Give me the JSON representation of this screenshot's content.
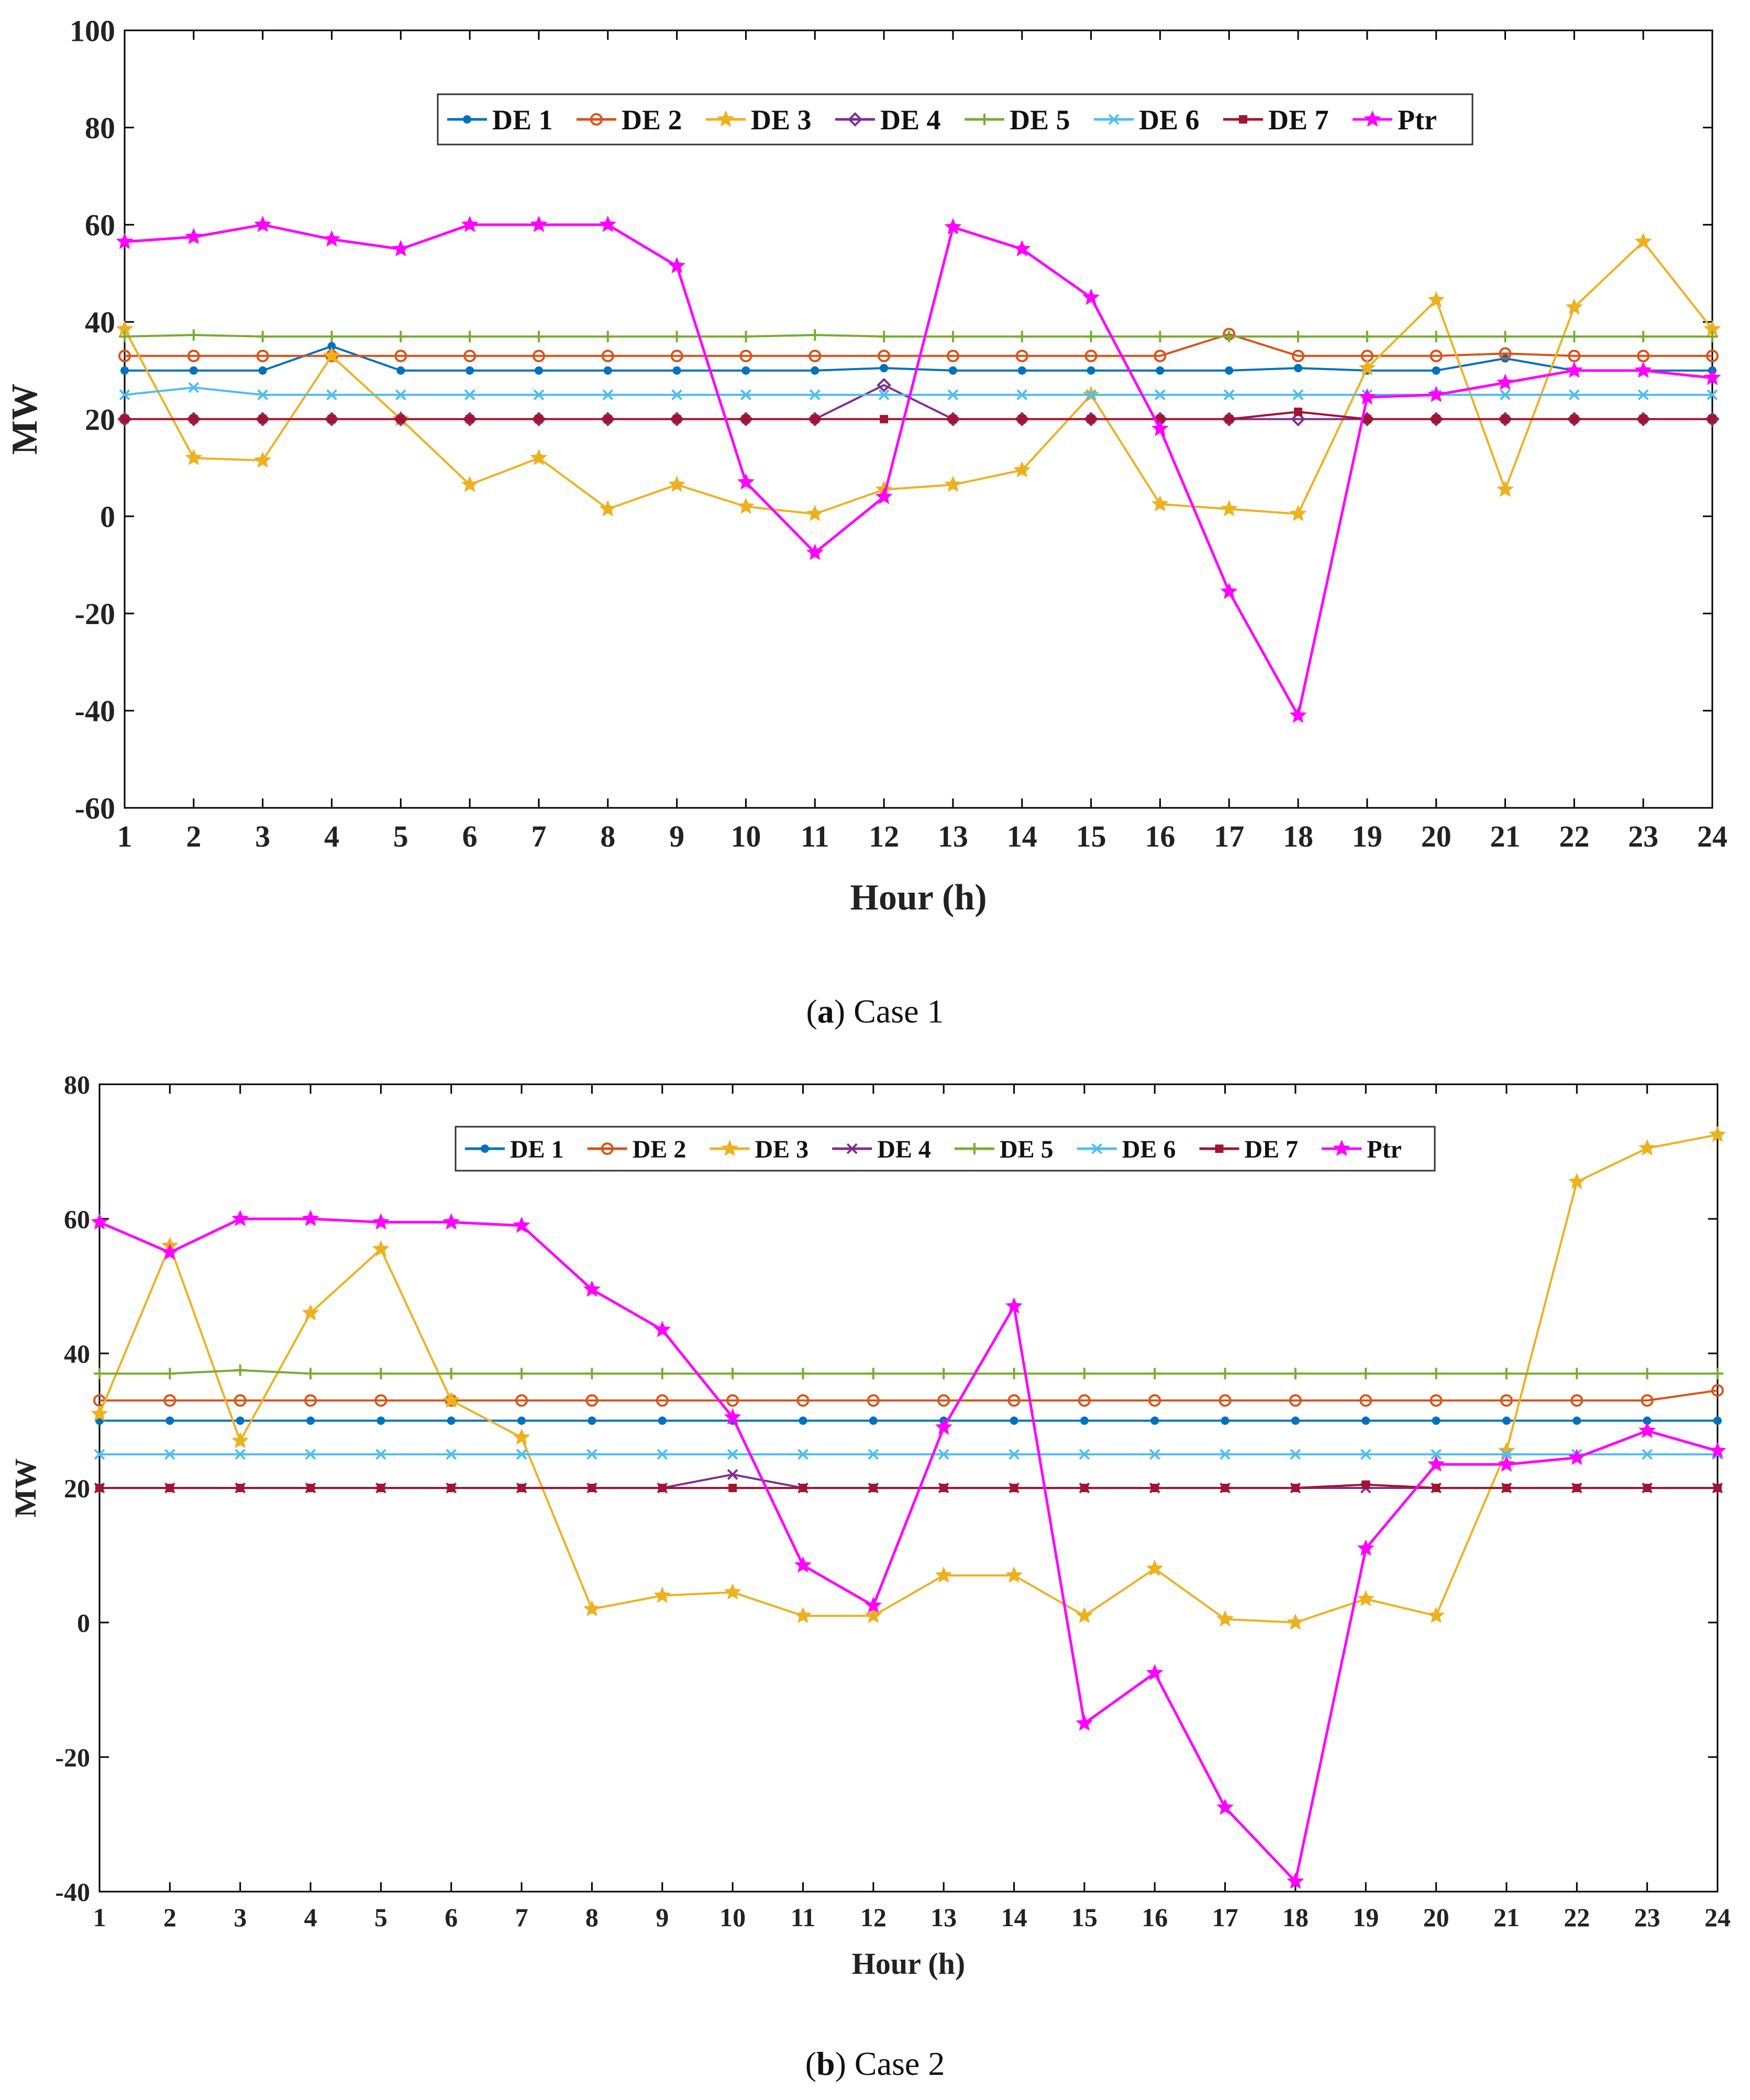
{
  "figure": {
    "captions": [
      {
        "letter": "a",
        "text": ") Case 1",
        "open": "("
      },
      {
        "letter": "b",
        "text": ") Case 2",
        "open": "("
      }
    ]
  },
  "colors": {
    "DE 1": "#0072BD",
    "DE 2": "#D95319",
    "DE 3": "#EDB120",
    "DE 4": "#7E2F8E",
    "DE 5": "#77AC30",
    "DE 6": "#4DBEEE",
    "DE 7": "#A2142F",
    "Ptr": "#FF00FF"
  },
  "chart_data": [
    {
      "type": "line",
      "title": "",
      "xlabel": "Hour (h)",
      "ylabel": "MW",
      "x": [
        1,
        2,
        3,
        4,
        5,
        6,
        7,
        8,
        9,
        10,
        11,
        12,
        13,
        14,
        15,
        16,
        17,
        18,
        19,
        20,
        21,
        22,
        23,
        24
      ],
      "xlim": [
        1,
        24
      ],
      "ylim": [
        -60,
        100
      ],
      "yticks": [
        -60,
        -40,
        -20,
        0,
        20,
        40,
        60,
        80,
        100
      ],
      "legend": "top-center",
      "series": [
        {
          "name": "DE 1",
          "marker": "dot",
          "values": [
            30,
            30,
            30,
            35,
            30,
            30,
            30,
            30,
            30,
            30,
            30,
            30.5,
            30,
            30,
            30,
            30,
            30,
            30.5,
            30,
            30,
            32.5,
            30,
            30,
            30
          ]
        },
        {
          "name": "DE 2",
          "marker": "circle",
          "values": [
            33,
            33,
            33,
            33,
            33,
            33,
            33,
            33,
            33,
            33,
            33,
            33,
            33,
            33,
            33,
            33,
            37.5,
            33,
            33,
            33,
            33.5,
            33,
            33,
            33
          ]
        },
        {
          "name": "DE 3",
          "marker": "star",
          "values": [
            38.5,
            12,
            11.5,
            33,
            20,
            6.5,
            12,
            1.5,
            6.5,
            2,
            0.5,
            5.5,
            6.5,
            9.5,
            25,
            2.5,
            1.5,
            0.5,
            30.5,
            44.5,
            5.5,
            43,
            56.5,
            38.5
          ]
        },
        {
          "name": "DE 4",
          "marker": "diamond",
          "values": [
            20,
            20,
            20,
            20,
            20,
            20,
            20,
            20,
            20,
            20,
            20,
            27,
            20,
            20,
            20,
            20,
            20,
            20,
            20,
            20,
            20,
            20,
            20,
            20
          ]
        },
        {
          "name": "DE 5",
          "marker": "plus",
          "values": [
            37,
            37.3,
            37,
            37,
            37,
            37,
            37,
            37,
            37,
            37,
            37.3,
            37,
            37,
            37,
            37,
            37,
            37,
            37,
            37,
            37,
            37,
            37,
            37,
            37
          ]
        },
        {
          "name": "DE 6",
          "marker": "x",
          "values": [
            25,
            26.5,
            25,
            25,
            25,
            25,
            25,
            25,
            25,
            25,
            25,
            25,
            25,
            25,
            25,
            25,
            25,
            25,
            25,
            25,
            25,
            25,
            25,
            25
          ]
        },
        {
          "name": "DE 7",
          "marker": "square",
          "values": [
            20,
            20,
            20,
            20,
            20,
            20,
            20,
            20,
            20,
            20,
            20,
            20,
            20,
            20,
            20,
            20,
            20,
            21.5,
            20,
            20,
            20,
            20,
            20,
            20
          ]
        },
        {
          "name": "Ptr",
          "marker": "star",
          "values": [
            56.5,
            57.5,
            60,
            57,
            55,
            60,
            60,
            60,
            51.5,
            7,
            -7.5,
            4,
            59.5,
            55,
            45,
            18,
            -15.5,
            -41,
            24.5,
            25,
            27.5,
            30,
            30,
            28.5
          ]
        }
      ]
    },
    {
      "type": "line",
      "title": "",
      "xlabel": "Hour (h)",
      "ylabel": "MW",
      "x": [
        1,
        2,
        3,
        4,
        5,
        6,
        7,
        8,
        9,
        10,
        11,
        12,
        13,
        14,
        15,
        16,
        17,
        18,
        19,
        20,
        21,
        22,
        23,
        24
      ],
      "xlim": [
        1,
        24
      ],
      "ylim": [
        -40,
        80
      ],
      "yticks": [
        -40,
        -20,
        0,
        20,
        40,
        60,
        80
      ],
      "legend": "top-center",
      "series": [
        {
          "name": "DE 1",
          "marker": "dot",
          "values": [
            30,
            30,
            30,
            30,
            30,
            30,
            30,
            30,
            30,
            30,
            30,
            30,
            30,
            30,
            30,
            30,
            30,
            30,
            30,
            30,
            30,
            30,
            30,
            30
          ]
        },
        {
          "name": "DE 2",
          "marker": "circle",
          "values": [
            33,
            33,
            33,
            33,
            33,
            33,
            33,
            33,
            33,
            33,
            33,
            33,
            33,
            33,
            33,
            33,
            33,
            33,
            33,
            33,
            33,
            33,
            33,
            34.5
          ]
        },
        {
          "name": "DE 3",
          "marker": "star",
          "values": [
            31,
            56,
            27,
            46,
            55.5,
            33,
            27.5,
            2,
            4,
            4.5,
            1,
            1,
            7,
            7,
            1,
            8,
            0.5,
            0,
            3.5,
            1,
            25.5,
            65.5,
            70.5,
            72.5
          ]
        },
        {
          "name": "DE 4",
          "marker": "x",
          "values": [
            20,
            20,
            20,
            20,
            20,
            20,
            20,
            20,
            20,
            22,
            20,
            20,
            20,
            20,
            20,
            20,
            20,
            20,
            20,
            20,
            20,
            20,
            20,
            20
          ]
        },
        {
          "name": "DE 5",
          "marker": "plus",
          "values": [
            37,
            37,
            37.5,
            37,
            37,
            37,
            37,
            37,
            37,
            37,
            37,
            37,
            37,
            37,
            37,
            37,
            37,
            37,
            37,
            37,
            37,
            37,
            37,
            37
          ]
        },
        {
          "name": "DE 6",
          "marker": "x",
          "values": [
            25,
            25,
            25,
            25,
            25,
            25,
            25,
            25,
            25,
            25,
            25,
            25,
            25,
            25,
            25,
            25,
            25,
            25,
            25,
            25,
            25,
            25,
            25,
            25
          ]
        },
        {
          "name": "DE 7",
          "marker": "square",
          "values": [
            20,
            20,
            20,
            20,
            20,
            20,
            20,
            20,
            20,
            20,
            20,
            20,
            20,
            20,
            20,
            20,
            20,
            20,
            20.5,
            20,
            20,
            20,
            20,
            20
          ]
        },
        {
          "name": "Ptr",
          "marker": "star",
          "values": [
            59.5,
            55,
            60,
            60,
            59.5,
            59.5,
            59,
            49.5,
            43.5,
            30.5,
            8.5,
            2.5,
            29,
            47,
            -15,
            -7.5,
            -27.5,
            -38.5,
            11,
            23.5,
            23.5,
            24.5,
            28.5,
            25.5
          ]
        }
      ]
    }
  ]
}
